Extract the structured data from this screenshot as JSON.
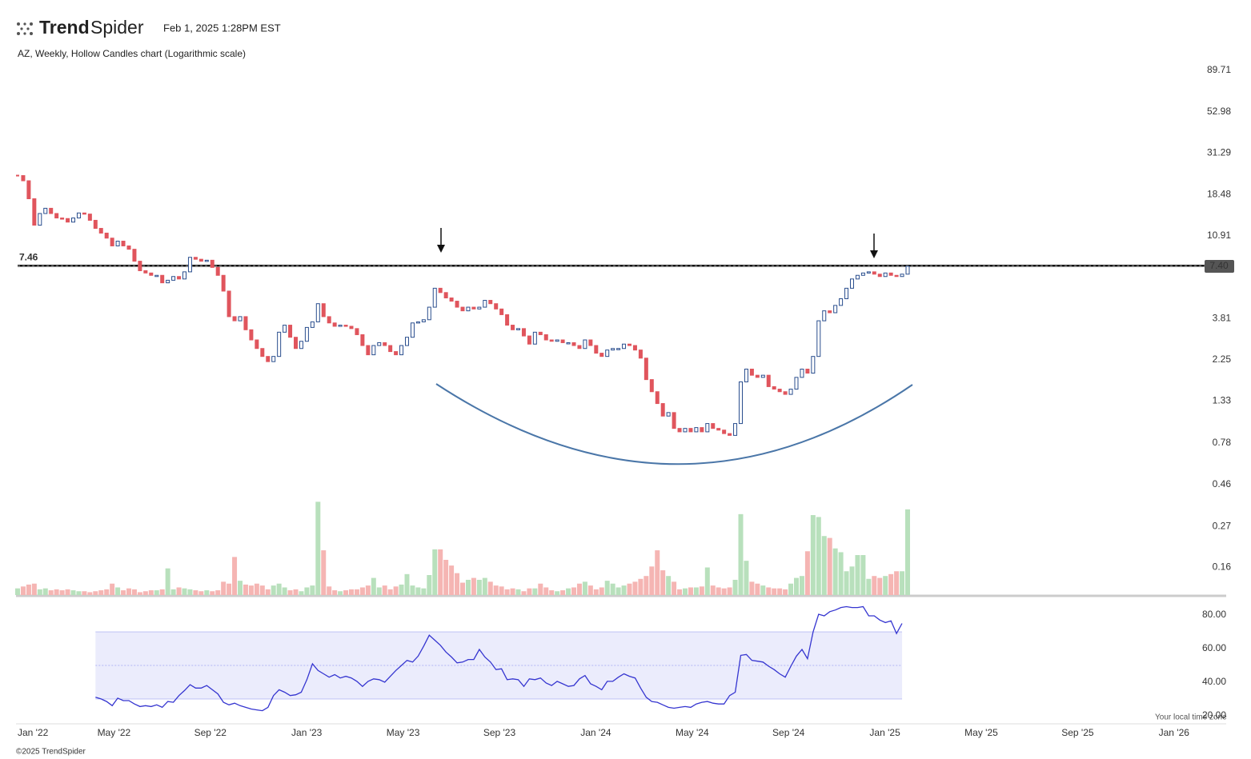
{
  "header": {
    "brand": [
      "Trend",
      "Spider"
    ],
    "timestamp": "Feb 1, 2025 1:28PM EST",
    "copyright": "©2025 TrendSpider",
    "note": "Your local time zone"
  },
  "chart_data": [
    {
      "type": "candlestick",
      "title": "AZ, Weekly, Hollow Candles chart (Logarithmic scale)",
      "log_scale": true,
      "up_color": "#2a4e8e",
      "down_color": "#e0555d",
      "values": [
        23.5,
        22,
        17.5,
        12.5,
        14.5,
        15.5,
        14.5,
        13.7,
        13.6,
        13,
        13.7,
        14.6,
        14.4,
        13.3,
        12,
        11.3,
        10.6,
        9.6,
        10.2,
        9.6,
        9.2,
        7.9,
        7.0,
        6.8,
        6.6,
        6.6,
        6.0,
        6.2,
        6.5,
        6.3,
        6.9,
        8.3,
        8.1,
        7.9,
        8.0,
        7.3,
        6.6,
        5.4,
        3.9,
        3.7,
        3.9,
        3.3,
        2.9,
        2.6,
        2.35,
        2.2,
        2.35,
        3.2,
        3.5,
        3.0,
        2.6,
        2.85,
        3.4,
        3.65,
        4.6,
        3.9,
        3.6,
        3.45,
        3.5,
        3.45,
        3.35,
        3.1,
        2.7,
        2.4,
        2.7,
        2.8,
        2.7,
        2.5,
        2.4,
        2.7,
        3.0,
        3.6,
        3.65,
        3.75,
        4.4,
        5.6,
        5.3,
        4.95,
        4.75,
        4.4,
        4.2,
        4.4,
        4.3,
        4.4,
        4.8,
        4.6,
        4.3,
        4.0,
        3.5,
        3.3,
        3.35,
        3.05,
        2.75,
        3.2,
        3.1,
        2.9,
        2.85,
        2.9,
        2.8,
        2.8,
        2.7,
        2.6,
        2.9,
        2.7,
        2.45,
        2.35,
        2.55,
        2.6,
        2.6,
        2.75,
        2.7,
        2.55,
        2.3,
        1.75,
        1.5,
        1.29,
        1.1,
        1.15,
        0.94,
        0.9,
        0.94,
        0.9,
        0.95,
        0.9,
        1.0,
        0.94,
        0.92,
        0.88,
        0.86,
        1.0,
        1.7,
        2.0,
        1.85,
        1.8,
        1.85,
        1.6,
        1.55,
        1.5,
        1.45,
        1.55,
        1.8,
        2.0,
        1.9,
        2.35,
        3.7,
        4.2,
        4.1,
        4.5,
        4.9,
        5.6,
        6.3,
        6.6,
        6.8,
        6.9,
        6.7,
        6.5,
        6.8,
        6.6,
        6.5,
        6.7,
        7.4
      ],
      "ylim": [
        0.1115,
        119.3
      ],
      "yticks": [
        89.71,
        52.98,
        31.29,
        18.48,
        10.91,
        3.81,
        2.25,
        1.33,
        0.78,
        0.46,
        0.27,
        0.16
      ],
      "hline": 7.46,
      "last_price": {
        "value": 7.4,
        "label": "7.40"
      },
      "xticks": [
        "Jan '22",
        "May '22",
        "Sep '22",
        "Jan '23",
        "May '23",
        "Sep '23",
        "Jan '24",
        "May '24",
        "Sep '24",
        "Jan '25",
        "May '25",
        "Sep '25",
        "Jan '26"
      ]
    },
    {
      "type": "bar",
      "up_color": "#b8e0bc",
      "down_color": "#f5b5b3",
      "ylim": [
        0,
        100
      ],
      "values": [
        7,
        9,
        11,
        12,
        6,
        7,
        5,
        6,
        5,
        6,
        5,
        4,
        4,
        3,
        4,
        5,
        6,
        12,
        8,
        5,
        7,
        6,
        3,
        4,
        5,
        5,
        6,
        28,
        6,
        8,
        7,
        6,
        5,
        4,
        5,
        4,
        5,
        14,
        12,
        40,
        15,
        11,
        10,
        12,
        10,
        6,
        10,
        12,
        8,
        5,
        6,
        4,
        8,
        10,
        98,
        47,
        9,
        5,
        4,
        5,
        6,
        6,
        8,
        10,
        18,
        8,
        10,
        6,
        9,
        11,
        22,
        10,
        8,
        7,
        21,
        48,
        48,
        37,
        31,
        23,
        13,
        16,
        18,
        16,
        18,
        14,
        10,
        9,
        6,
        7,
        6,
        4,
        7,
        7,
        12,
        8,
        5,
        4,
        5,
        7,
        8,
        12,
        14,
        10,
        6,
        8,
        15,
        12,
        8,
        10,
        12,
        14,
        17,
        20,
        30,
        47,
        26,
        20,
        14,
        6,
        7,
        8,
        8,
        9,
        29,
        10,
        8,
        7,
        8,
        16,
        85,
        36,
        14,
        12,
        10,
        8,
        7,
        7,
        6,
        12,
        18,
        20,
        46,
        84,
        82,
        62,
        60,
        49,
        45,
        25,
        30,
        42,
        42,
        17,
        20,
        18,
        20,
        22,
        25,
        25,
        90
      ]
    },
    {
      "type": "line",
      "color": "#3535d0",
      "band": [
        30,
        70
      ],
      "ylim": [
        15.2,
        88.1
      ],
      "yticks": [
        {
          "value": 80,
          "label": "80.00"
        },
        {
          "value": 60,
          "label": "60.00"
        },
        {
          "value": 40,
          "label": "40.00"
        },
        {
          "value": 20,
          "label": "20.00"
        }
      ],
      "values": [
        null,
        null,
        null,
        null,
        null,
        null,
        null,
        null,
        null,
        null,
        null,
        null,
        null,
        null,
        31,
        30,
        28.5,
        26,
        30.5,
        29,
        29,
        27,
        25.5,
        26,
        25.5,
        26.5,
        25,
        28.5,
        28,
        32,
        35,
        38.5,
        36.5,
        36.5,
        38,
        35.5,
        33,
        28,
        26.5,
        27.5,
        26,
        25,
        24,
        23.5,
        23,
        25,
        32,
        35.5,
        34,
        32,
        32.5,
        34,
        41.5,
        51,
        47,
        45,
        43,
        44.5,
        42.5,
        43.5,
        42.5,
        40.5,
        37.5,
        40.5,
        42,
        41.5,
        40,
        43.5,
        47,
        50,
        53,
        52,
        55.5,
        61.5,
        68,
        65,
        62,
        58,
        55,
        51.5,
        52,
        53.5,
        53.5,
        59.5,
        55,
        52,
        47.5,
        48,
        41.5,
        42,
        41.5,
        37.5,
        42,
        41.5,
        42.5,
        39.5,
        38,
        40.5,
        39,
        37.5,
        38,
        42,
        44,
        39,
        37.5,
        35.5,
        40.5,
        40.5,
        43,
        45,
        43.5,
        42.5,
        36.5,
        31,
        28.5,
        28,
        26.5,
        25,
        24.5,
        25,
        25.5,
        25,
        27,
        28,
        28.5,
        27.5,
        27,
        27,
        32,
        34,
        56,
        56.5,
        53,
        52.5,
        52,
        49.5,
        47.5,
        45,
        43,
        49.5,
        55.5,
        59.5,
        54,
        70,
        80.5,
        79.5,
        82,
        83,
        84.5,
        85,
        84.5,
        84.5,
        85,
        79.5,
        79.5,
        77,
        75.5,
        76.5,
        69,
        75
      ]
    }
  ]
}
